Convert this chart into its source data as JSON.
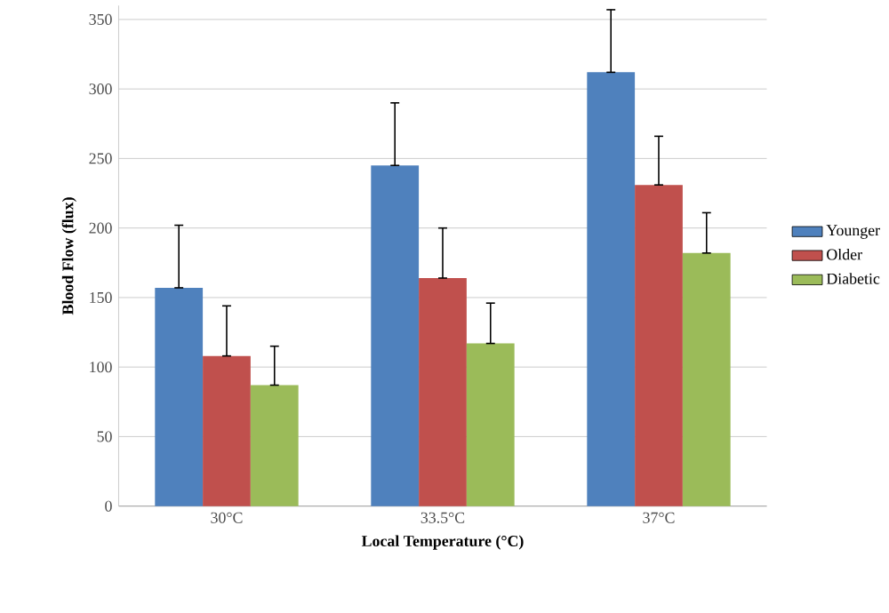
{
  "chart_data": {
    "type": "bar",
    "xlabel": "Local Temperature (°C)",
    "ylabel": "Blood Flow (flux)",
    "categories": [
      "30°C",
      "33.5°C",
      "37°C"
    ],
    "series": [
      {
        "name": "Younger",
        "color": "#4f81bd",
        "values": [
          157,
          245,
          312
        ],
        "errors": [
          [
            157,
            202
          ],
          [
            245,
            290
          ],
          [
            312,
            357
          ]
        ]
      },
      {
        "name": "Older",
        "color": "#c0504d",
        "values": [
          108,
          164,
          231
        ],
        "errors": [
          [
            108,
            144
          ],
          [
            164,
            200
          ],
          [
            231,
            266
          ]
        ]
      },
      {
        "name": "Diabetic",
        "color": "#9bbb59",
        "values": [
          87,
          117,
          182
        ],
        "errors": [
          [
            87,
            115
          ],
          [
            117,
            146
          ],
          [
            182,
            211
          ]
        ]
      }
    ],
    "ylim": [
      0,
      360
    ],
    "yticks": [
      0,
      50,
      100,
      150,
      200,
      250,
      300,
      350
    ],
    "grid": "y",
    "legend": "right"
  }
}
